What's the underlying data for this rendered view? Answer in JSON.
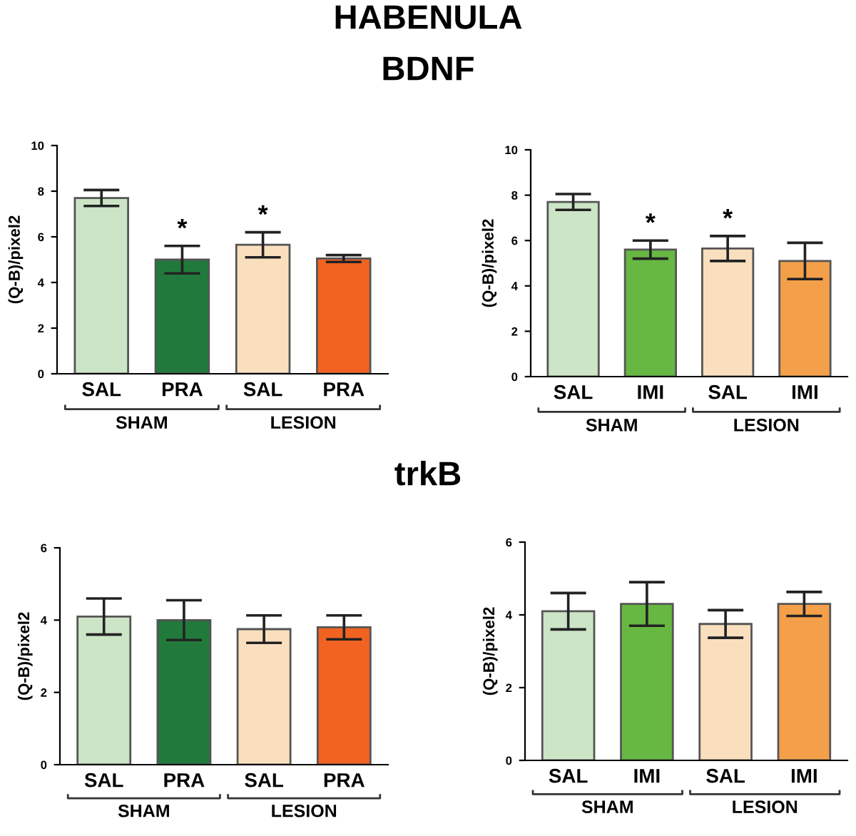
{
  "chart_data": [
    {
      "type": "bar",
      "title": "HABENULA",
      "subtitle": "BDNF",
      "ylabel": "(Q-B)/pixel2",
      "categories": [
        "SAL",
        "PRA",
        "SAL",
        "PRA"
      ],
      "values": [
        7.7,
        5.0,
        5.65,
        5.05
      ],
      "errors": [
        0.35,
        0.6,
        0.55,
        0.15
      ],
      "colors": [
        "#cce5c6",
        "#217a3c",
        "#fadfbf",
        "#f26322"
      ],
      "value_labels": [
        null,
        "*",
        "*",
        null
      ],
      "annotations": [
        "SHAM",
        "LESION"
      ],
      "ylim": [
        0,
        10
      ],
      "yticks": [
        0,
        2,
        4,
        6,
        8,
        10
      ],
      "grid": false,
      "legend": false
    },
    {
      "type": "bar",
      "ylabel": "(Q-B)/pixel2",
      "categories": [
        "SAL",
        "IMI",
        "SAL",
        "IMI"
      ],
      "values": [
        7.7,
        5.6,
        5.65,
        5.1
      ],
      "errors": [
        0.35,
        0.4,
        0.55,
        0.8
      ],
      "colors": [
        "#cce5c6",
        "#66b843",
        "#fadfbf",
        "#f4a04a"
      ],
      "value_labels": [
        null,
        "*",
        "*",
        null
      ],
      "annotations": [
        "SHAM",
        "LESION"
      ],
      "ylim": [
        0,
        10
      ],
      "yticks": [
        0,
        2,
        4,
        6,
        8,
        10
      ],
      "grid": false,
      "legend": false
    },
    {
      "type": "bar",
      "title": "trkB",
      "ylabel": "(Q-B)/pixel2",
      "categories": [
        "SAL",
        "PRA",
        "SAL",
        "PRA"
      ],
      "values": [
        4.1,
        4.0,
        3.75,
        3.8
      ],
      "errors": [
        0.5,
        0.55,
        0.38,
        0.33
      ],
      "colors": [
        "#cce5c6",
        "#217a3c",
        "#fadfbf",
        "#f26322"
      ],
      "annotations": [
        "SHAM",
        "LESION"
      ],
      "ylim": [
        0,
        6
      ],
      "yticks": [
        0,
        2,
        4,
        6
      ],
      "grid": false,
      "legend": false
    },
    {
      "type": "bar",
      "ylabel": "(Q-B)/pixel2",
      "categories": [
        "SAL",
        "IMI",
        "SAL",
        "IMI"
      ],
      "values": [
        4.1,
        4.3,
        3.75,
        4.3
      ],
      "errors": [
        0.5,
        0.6,
        0.38,
        0.33
      ],
      "colors": [
        "#cce5c6",
        "#66b843",
        "#fadfbf",
        "#f4a04a"
      ],
      "annotations": [
        "SHAM",
        "LESION"
      ],
      "ylim": [
        0,
        6
      ],
      "yticks": [
        0,
        2,
        4,
        6
      ],
      "grid": false,
      "legend": false
    }
  ]
}
